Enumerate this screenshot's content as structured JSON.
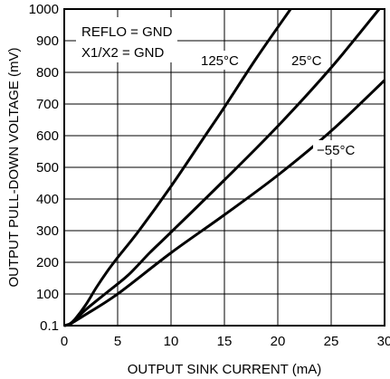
{
  "chart_data": {
    "type": "line",
    "title": "",
    "xlabel": "OUTPUT SINK CURRENT (mA)",
    "ylabel": "OUTPUT PULL-DOWN VOLTAGE (mV)",
    "xlim": [
      0,
      30
    ],
    "ylim": [
      0,
      1000
    ],
    "x_tick_labels": [
      "0",
      "5",
      "10",
      "15",
      "20",
      "25",
      "30"
    ],
    "y_tick_labels": [
      "0.1",
      "100",
      "200",
      "300",
      "400",
      "500",
      "600",
      "700",
      "800",
      "900",
      "1000"
    ],
    "grid": true,
    "annotations": [
      "REFLO = GND",
      "X1/X2 = GND"
    ],
    "series": [
      {
        "name": "125°C",
        "x": [
          0,
          0.5,
          1,
          2,
          3,
          4,
          5,
          7,
          10,
          13,
          15,
          18,
          21.2
        ],
        "y": [
          0.1,
          5,
          20,
          65,
          120,
          170,
          215,
          300,
          440,
          590,
          690,
          845,
          1000
        ]
      },
      {
        "name": "25°C",
        "x": [
          0,
          0.5,
          1,
          2,
          4,
          6,
          8,
          10,
          15,
          20,
          25,
          29.5
        ],
        "y": [
          0.1,
          5,
          17,
          50,
          105,
          160,
          230,
          295,
          460,
          630,
          815,
          1000
        ]
      },
      {
        "name": "−55°C",
        "x": [
          0,
          0.5,
          1,
          2,
          5,
          10,
          15,
          20,
          25,
          30
        ],
        "y": [
          0.1,
          4,
          14,
          35,
          100,
          230,
          350,
          475,
          615,
          775
        ]
      }
    ],
    "curve_labels": [
      "125°C",
      "25°C",
      "−55°C"
    ]
  }
}
